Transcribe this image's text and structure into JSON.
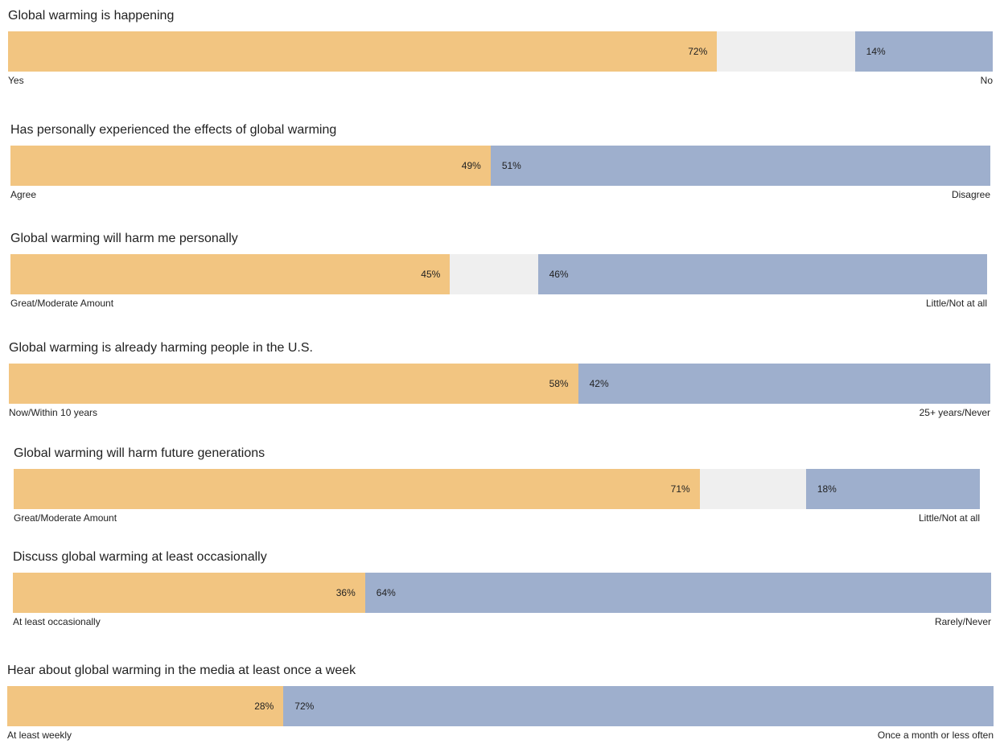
{
  "colors": {
    "left": "#f2c581",
    "right": "#9eafcd",
    "neutral": "#efefef"
  },
  "chart_data": {
    "type": "bar",
    "orientation": "horizontal-stacked",
    "series": [
      {
        "title": "Global warming is happening",
        "left_value": 72,
        "left_text": "72%",
        "right_value": 14,
        "right_text": "14%",
        "left_label": "Yes",
        "right_label": "No"
      },
      {
        "title": "Has personally experienced the effects of global warming",
        "left_value": 49,
        "left_text": "49%",
        "right_value": 51,
        "right_text": "51%",
        "left_label": "Agree",
        "right_label": "Disagree"
      },
      {
        "title": "Global warming will harm me personally",
        "left_value": 45,
        "left_text": "45%",
        "right_value": 46,
        "right_text": "46%",
        "left_label": "Great/Moderate Amount",
        "right_label": "Little/Not at all"
      },
      {
        "title": "Global warming is already harming people in the U.S.",
        "left_value": 58,
        "left_text": "58%",
        "right_value": 42,
        "right_text": "42%",
        "left_label": "Now/Within 10 years",
        "right_label": "25+ years/Never"
      },
      {
        "title": "Global warming will harm future generations",
        "left_value": 71,
        "left_text": "71%",
        "right_value": 18,
        "right_text": "18%",
        "left_label": "Great/Moderate Amount",
        "right_label": "Little/Not at all"
      },
      {
        "title": "Discuss global warming at least occasionally",
        "left_value": 36,
        "left_text": "36%",
        "right_value": 64,
        "right_text": "64%",
        "left_label": "At least occasionally",
        "right_label": "Rarely/Never"
      },
      {
        "title": "Hear about global warming in the media at least once a week",
        "left_value": 28,
        "left_text": "28%",
        "right_value": 72,
        "right_text": "72%",
        "left_label": "At least weekly",
        "right_label": "Once a month or less often"
      }
    ]
  }
}
